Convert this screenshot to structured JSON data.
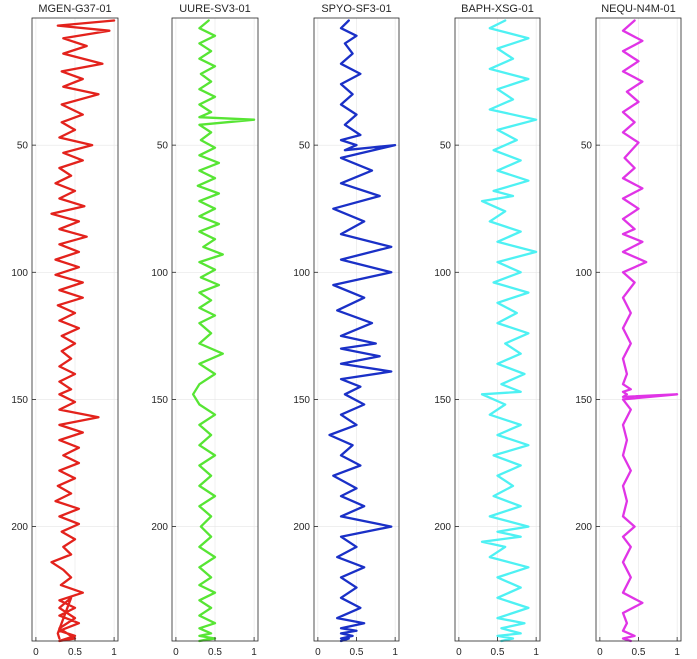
{
  "chart_data": [
    {
      "type": "line",
      "title": "MGEN-G37-01",
      "color": "#e3221c",
      "xlim": [
        -0.05,
        1.05
      ],
      "ylim": [
        0,
        245
      ],
      "y_reversed": true,
      "xticks": [
        0,
        0.5,
        1
      ],
      "xtick_labels": [
        "0",
        "0.5",
        "1"
      ],
      "yticks": [
        50,
        100,
        150,
        200
      ],
      "ytick_labels": [
        "50",
        "100",
        "150",
        "200"
      ],
      "grid": true,
      "x": [
        1.0,
        0.28,
        0.94,
        0.35,
        0.65,
        0.35,
        0.85,
        0.33,
        0.6,
        0.35,
        0.8,
        0.33,
        0.6,
        0.33,
        0.5,
        0.3,
        0.72,
        0.35,
        0.6,
        0.3,
        0.45,
        0.25,
        0.5,
        0.3,
        0.62,
        0.2,
        0.55,
        0.3,
        0.65,
        0.3,
        0.55,
        0.25,
        0.55,
        0.25,
        0.6,
        0.3,
        0.6,
        0.28,
        0.5,
        0.3,
        0.55,
        0.33,
        0.5,
        0.33,
        0.45,
        0.3,
        0.5,
        0.3,
        0.45,
        0.3,
        0.5,
        0.3,
        0.8,
        0.3,
        0.6,
        0.3,
        0.55,
        0.35,
        0.55,
        0.3,
        0.5,
        0.28,
        0.45,
        0.25,
        0.55,
        0.3,
        0.55,
        0.33,
        0.5,
        0.35,
        0.45,
        0.2,
        0.35,
        0.45,
        0.32,
        0.6,
        0.3,
        0.5,
        0.3,
        0.55,
        0.3,
        0.5,
        0.3,
        0.5,
        0.3,
        0.5,
        0.3,
        0.45,
        0.28,
        0.3
      ],
      "y": [
        1,
        3,
        5,
        8,
        11,
        14,
        18,
        21,
        24,
        27,
        30,
        34,
        38,
        41,
        44,
        47,
        50,
        53,
        56,
        59,
        62,
        65,
        68,
        71,
        74,
        77,
        80,
        83,
        86,
        89,
        92,
        95,
        98,
        101,
        104,
        107,
        110,
        113,
        116,
        119,
        122,
        125,
        128,
        131,
        134,
        137,
        140,
        143,
        146,
        148,
        151,
        154,
        157,
        160,
        163,
        166,
        169,
        172,
        175,
        178,
        181,
        184,
        187,
        190,
        193,
        196,
        199,
        202,
        205,
        208,
        211,
        214,
        217,
        220,
        223,
        226,
        229,
        232,
        235,
        238,
        241,
        243,
        245,
        244,
        240,
        236,
        232,
        228,
        242,
        244
      ]
    },
    {
      "type": "line",
      "title": "UURE-SV3-01",
      "color": "#57e534",
      "xlim": [
        -0.05,
        1.05
      ],
      "ylim": [
        0,
        245
      ],
      "y_reversed": true,
      "xticks": [
        0,
        0.5,
        1
      ],
      "xtick_labels": [
        "0",
        "0.5",
        "1"
      ],
      "yticks": [
        50,
        100,
        150,
        200
      ],
      "ytick_labels": [
        "50",
        "100",
        "150",
        "200"
      ],
      "grid": true,
      "x": [
        0.42,
        0.3,
        0.5,
        0.3,
        0.45,
        0.3,
        0.5,
        0.32,
        0.45,
        0.3,
        0.5,
        0.3,
        0.45,
        0.3,
        1.0,
        0.3,
        0.45,
        0.32,
        0.5,
        0.3,
        0.55,
        0.3,
        0.5,
        0.28,
        0.55,
        0.3,
        0.5,
        0.3,
        0.55,
        0.3,
        0.5,
        0.35,
        0.6,
        0.3,
        0.5,
        0.32,
        0.55,
        0.3,
        0.45,
        0.3,
        0.5,
        0.3,
        0.45,
        0.3,
        0.6,
        0.3,
        0.5,
        0.3,
        0.22,
        0.3,
        0.5,
        0.3,
        0.45,
        0.3,
        0.5,
        0.3,
        0.45,
        0.3,
        0.5,
        0.3,
        0.45,
        0.32,
        0.45,
        0.3,
        0.5,
        0.3,
        0.45,
        0.3,
        0.5,
        0.3,
        0.45,
        0.3,
        0.5,
        0.3,
        0.45,
        0.3,
        0.5,
        0.3,
        0.45,
        0.3
      ],
      "y": [
        1,
        4,
        7,
        10,
        13,
        16,
        19,
        22,
        25,
        28,
        31,
        34,
        37,
        39,
        40,
        42,
        45,
        48,
        51,
        54,
        57,
        60,
        63,
        66,
        69,
        72,
        75,
        78,
        81,
        84,
        87,
        90,
        93,
        96,
        99,
        102,
        105,
        108,
        111,
        114,
        117,
        120,
        124,
        128,
        132,
        136,
        140,
        144,
        148,
        152,
        156,
        160,
        164,
        168,
        172,
        176,
        180,
        184,
        188,
        192,
        196,
        200,
        204,
        208,
        212,
        216,
        220,
        223,
        226,
        229,
        232,
        235,
        238,
        240,
        242,
        243,
        244,
        245,
        244,
        245
      ]
    },
    {
      "type": "line",
      "title": "SPYO-SF3-01",
      "color": "#1a30c7",
      "xlim": [
        -0.05,
        1.05
      ],
      "ylim": [
        0,
        245
      ],
      "y_reversed": true,
      "xticks": [
        0,
        0.5,
        1
      ],
      "xtick_labels": [
        "0",
        "0.5",
        "1"
      ],
      "yticks": [
        50,
        100,
        150,
        200
      ],
      "ytick_labels": [
        "50",
        "100",
        "150",
        "200"
      ],
      "grid": true,
      "x": [
        0.4,
        0.3,
        0.5,
        0.35,
        0.45,
        0.3,
        0.55,
        0.3,
        0.45,
        0.3,
        0.5,
        0.35,
        0.55,
        0.3,
        0.5,
        0.35,
        1.0,
        0.3,
        0.7,
        0.3,
        0.8,
        0.2,
        0.6,
        0.3,
        0.95,
        0.3,
        0.95,
        0.2,
        0.6,
        0.25,
        0.7,
        0.3,
        0.75,
        0.3,
        0.8,
        0.3,
        0.95,
        0.3,
        0.55,
        0.35,
        0.6,
        0.3,
        0.5,
        0.15,
        0.45,
        0.3,
        0.55,
        0.2,
        0.5,
        0.3,
        0.6,
        0.3,
        0.95,
        0.3,
        0.5,
        0.25,
        0.6,
        0.3,
        0.5,
        0.3,
        0.55,
        0.25,
        0.6,
        0.3,
        0.5,
        0.3,
        0.45,
        0.3,
        0.4,
        0.3
      ],
      "y": [
        1,
        4,
        7,
        10,
        14,
        18,
        22,
        26,
        30,
        34,
        38,
        42,
        46,
        48,
        50,
        52,
        50,
        55,
        60,
        65,
        70,
        75,
        80,
        85,
        90,
        95,
        100,
        105,
        110,
        115,
        120,
        125,
        128,
        130,
        133,
        136,
        139,
        142,
        145,
        148,
        152,
        156,
        160,
        164,
        168,
        172,
        176,
        180,
        185,
        188,
        192,
        196,
        200,
        204,
        208,
        212,
        216,
        220,
        224,
        228,
        232,
        236,
        238,
        240,
        241,
        242,
        243,
        244,
        244,
        245
      ]
    },
    {
      "type": "line",
      "title": "BAPH-XSG-01",
      "color": "#4ef1f3",
      "xlim": [
        -0.05,
        1.05
      ],
      "ylim": [
        0,
        245
      ],
      "y_reversed": true,
      "xticks": [
        0,
        0.5,
        1
      ],
      "xtick_labels": [
        "0",
        "0.5",
        "1"
      ],
      "yticks": [
        50,
        100,
        150,
        200
      ],
      "ytick_labels": [
        "50",
        "100",
        "150",
        "200"
      ],
      "grid": true,
      "x": [
        0.6,
        0.4,
        0.9,
        0.5,
        0.7,
        0.4,
        0.9,
        0.5,
        0.7,
        0.4,
        1.0,
        0.5,
        0.75,
        0.45,
        0.8,
        0.5,
        0.9,
        0.45,
        0.7,
        0.3,
        0.6,
        0.4,
        0.8,
        0.5,
        1.0,
        0.5,
        0.8,
        0.45,
        0.9,
        0.5,
        0.75,
        0.5,
        0.9,
        0.6,
        0.8,
        0.5,
        0.85,
        0.55,
        0.8,
        0.3,
        0.6,
        0.4,
        0.8,
        0.5,
        0.9,
        0.45,
        0.8,
        0.5,
        0.7,
        0.45,
        0.8,
        0.4,
        0.9,
        0.5,
        0.8,
        0.3,
        0.6,
        0.4,
        0.9,
        0.5,
        0.8,
        0.5,
        0.9,
        0.5,
        0.85,
        0.55,
        0.8,
        0.5,
        0.7,
        0.55
      ],
      "y": [
        1,
        4,
        8,
        12,
        16,
        20,
        24,
        28,
        32,
        36,
        40,
        44,
        48,
        52,
        56,
        60,
        64,
        68,
        70,
        72,
        76,
        80,
        84,
        88,
        92,
        96,
        100,
        104,
        108,
        112,
        116,
        120,
        124,
        128,
        132,
        136,
        140,
        144,
        147,
        148,
        152,
        156,
        160,
        164,
        168,
        172,
        176,
        180,
        184,
        188,
        192,
        196,
        200,
        202,
        204,
        206,
        208,
        212,
        216,
        220,
        224,
        228,
        232,
        236,
        238,
        240,
        242,
        243,
        244,
        245
      ]
    },
    {
      "type": "line",
      "title": "NEQU-N4M-01",
      "color": "#e034e6",
      "xlim": [
        -0.05,
        1.05
      ],
      "ylim": [
        0,
        245
      ],
      "y_reversed": true,
      "xticks": [
        0,
        0.5,
        1
      ],
      "xtick_labels": [
        "0",
        "0.5",
        "1"
      ],
      "yticks": [
        50,
        100,
        150,
        200
      ],
      "ytick_labels": [
        "50",
        "100",
        "150",
        "200"
      ],
      "grid": true,
      "x": [
        0.45,
        0.3,
        0.55,
        0.3,
        0.5,
        0.3,
        0.55,
        0.35,
        0.5,
        0.3,
        0.45,
        0.3,
        0.5,
        0.32,
        0.45,
        0.3,
        0.55,
        0.3,
        0.5,
        0.3,
        0.45,
        0.3,
        0.55,
        0.3,
        0.6,
        0.3,
        0.45,
        0.3,
        0.4,
        0.3,
        0.4,
        0.3,
        0.35,
        0.3,
        0.4,
        0.3,
        0.35,
        0.3,
        1.0,
        0.3,
        0.4,
        0.3,
        0.35,
        0.3,
        0.4,
        0.3,
        0.35,
        0.3,
        0.45,
        0.3,
        0.4,
        0.3,
        0.4,
        0.3,
        0.55,
        0.3,
        0.35,
        0.3,
        0.45,
        0.3,
        0.4
      ],
      "y": [
        1,
        5,
        9,
        13,
        17,
        21,
        25,
        29,
        33,
        37,
        41,
        45,
        49,
        55,
        59,
        63,
        67,
        71,
        75,
        79,
        83,
        85,
        88,
        92,
        96,
        100,
        104,
        110,
        116,
        122,
        128,
        134,
        140,
        144,
        146,
        147,
        148,
        149,
        148,
        150,
        154,
        160,
        166,
        172,
        178,
        184,
        190,
        196,
        200,
        204,
        208,
        214,
        220,
        226,
        230,
        234,
        238,
        241,
        243,
        244,
        245
      ]
    }
  ]
}
